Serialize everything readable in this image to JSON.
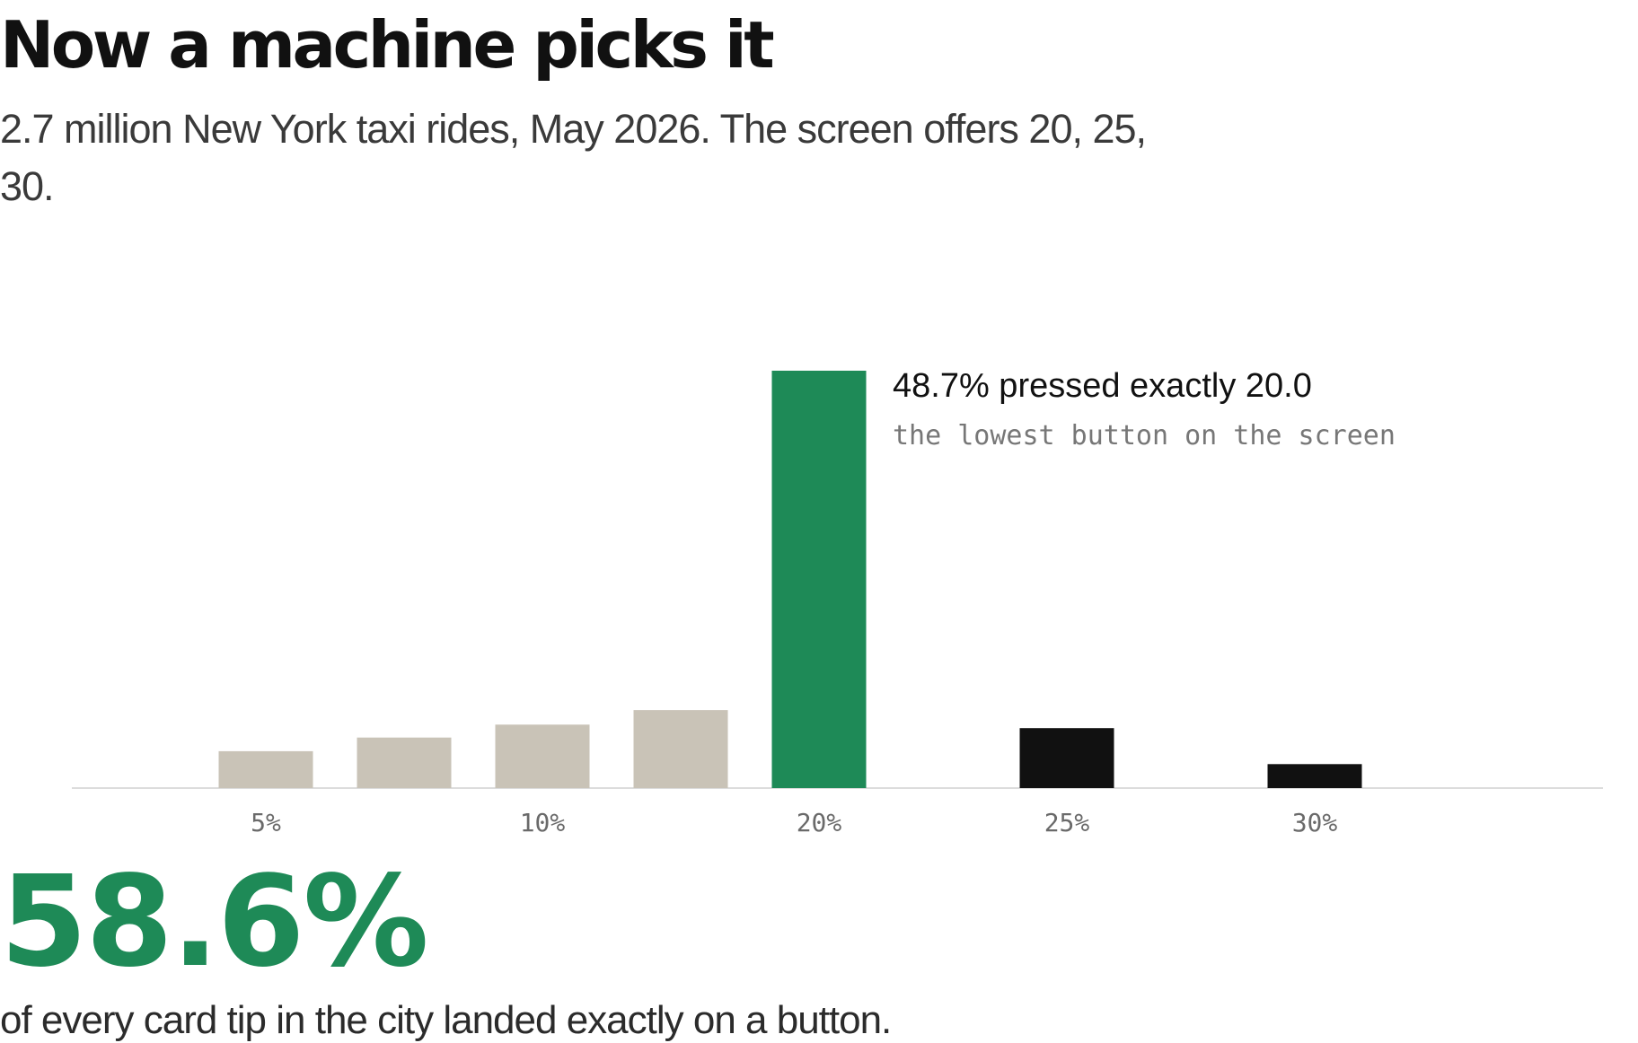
{
  "header": {
    "title": "Now a machine picks it",
    "subtitle": "2.7 million New York taxi rides, May 2026. The screen offers 20, 25, 30."
  },
  "colors": {
    "manual": "#c9c3b7",
    "highlight": "#1e8a57",
    "button": "#111111",
    "baseline": "#dcdcdc"
  },
  "chart_data": {
    "type": "bar",
    "title": "",
    "xlabel": "",
    "ylabel": "",
    "ylim": [
      0,
      48.7
    ],
    "grid": false,
    "legend": "none",
    "x_tick_labels": [
      "5%",
      "10%",
      "20%",
      "25%",
      "30%"
    ],
    "bars": [
      {
        "x": 5,
        "value": 4.3,
        "group": "manual",
        "tick": "5%"
      },
      {
        "x": 8,
        "value": 5.9,
        "group": "manual",
        "tick": ""
      },
      {
        "x": 10,
        "value": 7.4,
        "group": "manual",
        "tick": "10%"
      },
      {
        "x": 15,
        "value": 9.1,
        "group": "manual",
        "tick": ""
      },
      {
        "x": 20,
        "value": 48.7,
        "group": "highlight",
        "tick": "20%"
      },
      {
        "x": 25,
        "value": 7.0,
        "group": "button",
        "tick": "25%"
      },
      {
        "x": 30,
        "value": 2.8,
        "group": "button",
        "tick": "30%"
      }
    ],
    "annotation": {
      "title": "48.7% pressed exactly 20.0",
      "subtitle": "the lowest button on the screen"
    }
  },
  "stat": {
    "value": "58.6%",
    "caption": "of every card tip in the city landed exactly on a button."
  }
}
